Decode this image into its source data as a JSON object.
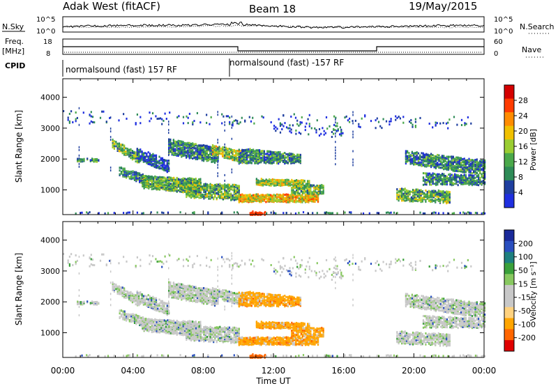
{
  "header": {
    "station": "Adak West (fitACF)",
    "beam": "Beam 18",
    "date": "19/May/2015"
  },
  "left_labels": {
    "nsky": "N.Sky",
    "freq_line1": "Freq.",
    "freq_line2": "[MHz]",
    "cpid": "CPID"
  },
  "right_labels": {
    "nsearch": "N.Search",
    "nave": "Nave"
  },
  "noise_panel": {
    "left_ticks": [
      "10^5",
      "10^0"
    ],
    "right_ticks": [
      "10^5",
      "10^0"
    ]
  },
  "freq_panel": {
    "left_ticks": [
      "18",
      "8"
    ],
    "right_ticks": [
      "60",
      "0"
    ]
  },
  "cpid_panel": {
    "label_a": "normalsound (fast) 157 RF",
    "label_b": "normalsound (fast) -157 RF"
  },
  "colors": {
    "power": [
      "#1f2fe0",
      "#1f3f9f",
      "#2e8b57",
      "#4aa84a",
      "#9acd32",
      "#f0c000",
      "#ff8c00",
      "#ff3b00",
      "#d40000"
    ],
    "velocity": [
      "#e00000",
      "#ff6600",
      "#ffa500",
      "#ffd27f",
      "#c8c8c8",
      "#c8c8c8",
      "#88c860",
      "#3aa03a",
      "#1e7f7f",
      "#2a4fbf",
      "#1a2a9a"
    ]
  },
  "chart_data": [
    {
      "type": "heatmap",
      "ylabel": "Slant Range [km]",
      "xlabel": "",
      "xlim": [
        0,
        24
      ],
      "ylim": [
        200,
        4600
      ],
      "yticks": [
        "1000",
        "2000",
        "3000",
        "4000"
      ],
      "colorbar": {
        "label": "Power [dB]",
        "ticks": [
          "4",
          "8",
          "12",
          "16",
          "20",
          "24",
          "28"
        ]
      }
    },
    {
      "type": "heatmap",
      "ylabel": "Slant Range [km]",
      "xlabel": "Time UT",
      "xlim": [
        0,
        24
      ],
      "ylim": [
        200,
        4600
      ],
      "yticks": [
        "1000",
        "2000",
        "3000",
        "4000"
      ],
      "xticks": [
        "00:00",
        "04:00",
        "08:00",
        "12:00",
        "16:00",
        "20:00",
        "00:00"
      ],
      "colorbar": {
        "label": "Velocity [m s⁻¹]",
        "ticks": [
          "200",
          "100",
          "50",
          "15",
          "-15",
          "-50",
          "-100",
          "-200"
        ]
      }
    }
  ]
}
